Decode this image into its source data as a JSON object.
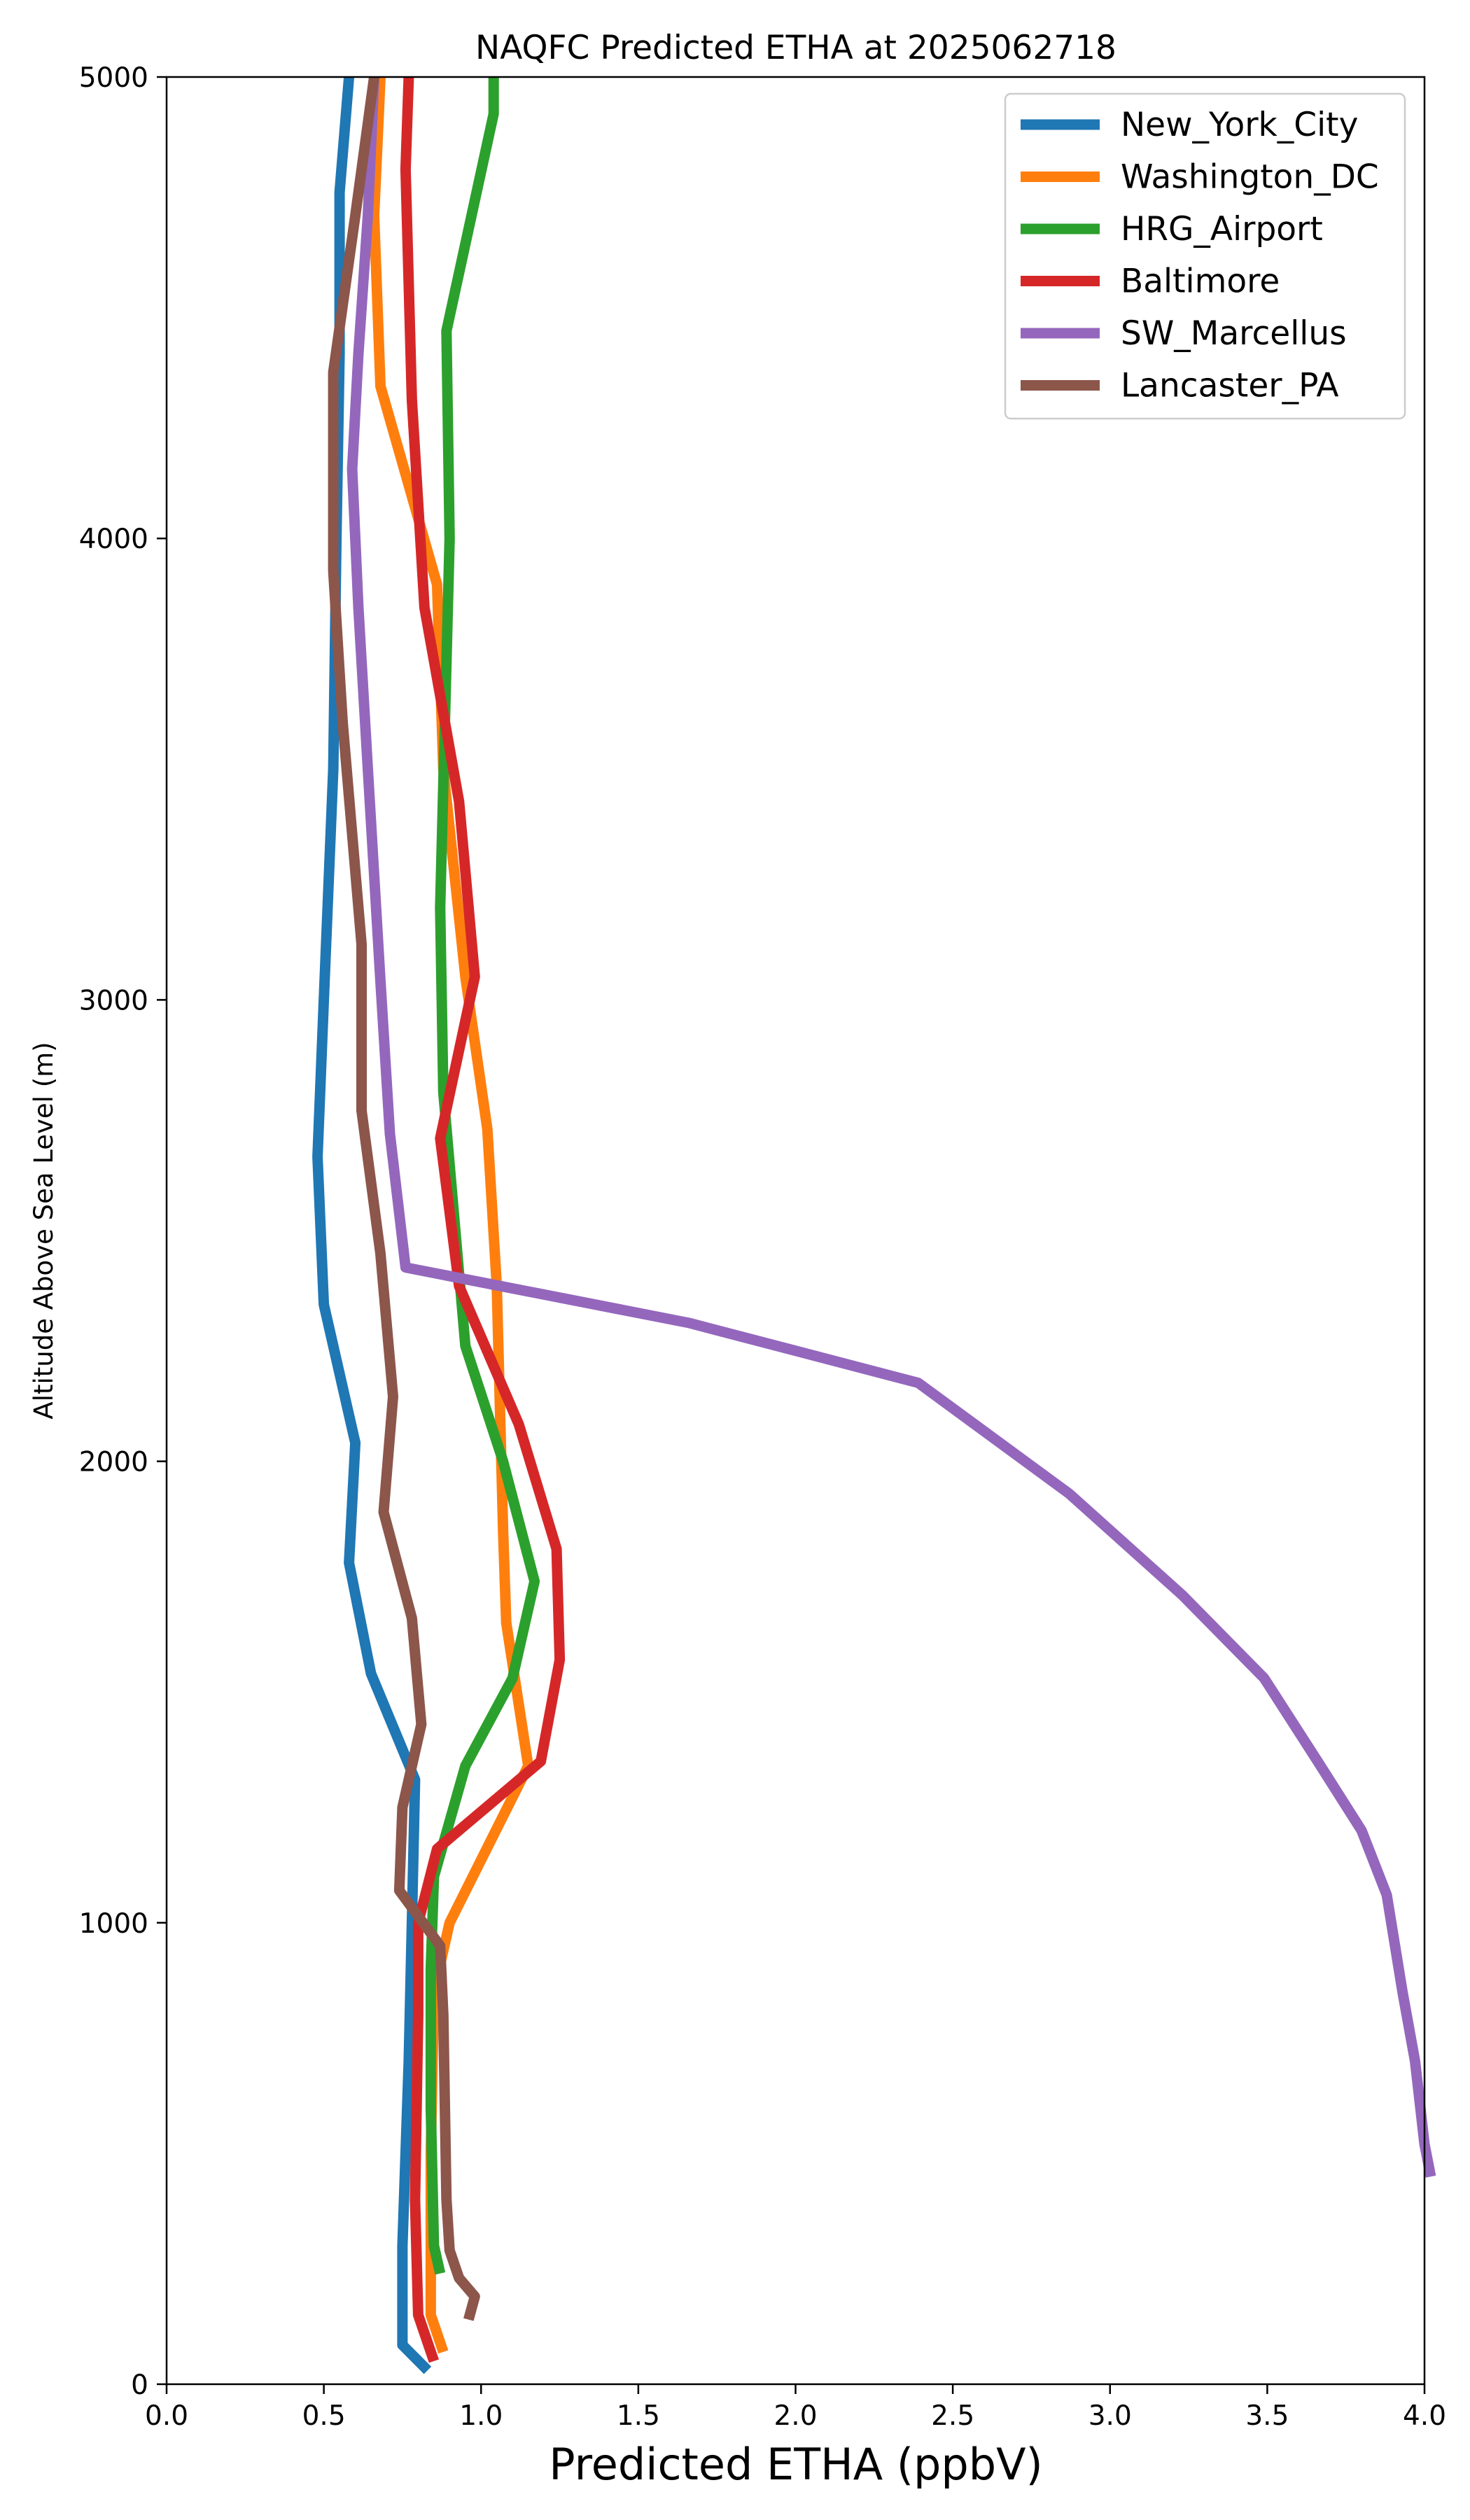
{
  "chart_data": {
    "type": "line",
    "title": "NAQFC Predicted ETHA at 2025062718",
    "xlabel": "Predicted ETHA (ppbV)",
    "ylabel": "Altitude Above Sea Level (m)",
    "xlim": [
      0,
      4.0
    ],
    "ylim": [
      0,
      5000
    ],
    "xticks": [
      "0.0",
      "0.5",
      "1.0",
      "1.5",
      "2.0",
      "2.5",
      "3.0",
      "3.5",
      "4.0"
    ],
    "yticks": [
      "0",
      "1000",
      "2000",
      "3000",
      "4000",
      "5000"
    ],
    "grid": false,
    "legend_position": "top-right",
    "series": [
      {
        "name": "New_York_City",
        "color": "#1f77b4",
        "points": [
          [
            0.83,
            30
          ],
          [
            0.75,
            85
          ],
          [
            0.75,
            300
          ],
          [
            0.77,
            700
          ],
          [
            0.78,
            1000
          ],
          [
            0.79,
            1310
          ],
          [
            0.65,
            1540
          ],
          [
            0.58,
            1780
          ],
          [
            0.6,
            2040
          ],
          [
            0.5,
            2340
          ],
          [
            0.48,
            2660
          ],
          [
            0.5,
            3000
          ],
          [
            0.53,
            3500
          ],
          [
            0.54,
            4000
          ],
          [
            0.55,
            4400
          ],
          [
            0.55,
            4750
          ],
          [
            0.58,
            5000
          ]
        ]
      },
      {
        "name": "Washington_DC",
        "color": "#ff7f0e",
        "points": [
          [
            0.88,
            70
          ],
          [
            0.84,
            150
          ],
          [
            0.84,
            500
          ],
          [
            0.85,
            850
          ],
          [
            0.9,
            1000
          ],
          [
            1.15,
            1340
          ],
          [
            1.08,
            1650
          ],
          [
            1.07,
            1850
          ],
          [
            1.05,
            2380
          ],
          [
            1.02,
            2720
          ],
          [
            0.95,
            3050
          ],
          [
            0.88,
            3500
          ],
          [
            0.86,
            3900
          ],
          [
            0.68,
            4330
          ],
          [
            0.66,
            4700
          ],
          [
            0.68,
            5000
          ]
        ]
      },
      {
        "name": "HRG_Airport",
        "color": "#2ca02c",
        "points": [
          [
            0.87,
            240
          ],
          [
            0.85,
            300
          ],
          [
            0.84,
            600
          ],
          [
            0.84,
            900
          ],
          [
            0.85,
            1100
          ],
          [
            0.95,
            1340
          ],
          [
            1.1,
            1530
          ],
          [
            1.17,
            1740
          ],
          [
            1.07,
            2000
          ],
          [
            0.95,
            2250
          ],
          [
            0.88,
            2800
          ],
          [
            0.87,
            3200
          ],
          [
            0.9,
            4000
          ],
          [
            0.89,
            4450
          ],
          [
            1.04,
            4920
          ],
          [
            1.04,
            5000
          ]
        ]
      },
      {
        "name": "Baltimore",
        "color": "#d62728",
        "points": [
          [
            0.85,
            50
          ],
          [
            0.8,
            150
          ],
          [
            0.79,
            400
          ],
          [
            0.8,
            800
          ],
          [
            0.8,
            1000
          ],
          [
            0.86,
            1160
          ],
          [
            1.19,
            1350
          ],
          [
            1.25,
            1570
          ],
          [
            1.24,
            1810
          ],
          [
            1.12,
            2080
          ],
          [
            0.93,
            2380
          ],
          [
            0.87,
            2700
          ],
          [
            0.98,
            3050
          ],
          [
            0.93,
            3430
          ],
          [
            0.82,
            3850
          ],
          [
            0.78,
            4300
          ],
          [
            0.76,
            4800
          ],
          [
            0.77,
            5000
          ]
        ]
      },
      {
        "name": "SW_Marcellus",
        "color": "#9467bd",
        "points": [
          [
            4.02,
            450
          ],
          [
            4.0,
            520
          ],
          [
            3.97,
            700
          ],
          [
            3.93,
            850
          ],
          [
            3.88,
            1060
          ],
          [
            3.8,
            1200
          ],
          [
            3.66,
            1350
          ],
          [
            3.49,
            1530
          ],
          [
            3.23,
            1710
          ],
          [
            2.87,
            1930
          ],
          [
            2.39,
            2170
          ],
          [
            1.66,
            2300
          ],
          [
            0.76,
            2420
          ],
          [
            0.71,
            2710
          ],
          [
            0.68,
            3040
          ],
          [
            0.64,
            3500
          ],
          [
            0.61,
            3850
          ],
          [
            0.59,
            4150
          ],
          [
            0.61,
            4400
          ],
          [
            0.64,
            4700
          ],
          [
            0.66,
            5000
          ]
        ]
      },
      {
        "name": "Lancaster_PA",
        "color": "#8c564b",
        "points": [
          [
            0.96,
            140
          ],
          [
            0.98,
            190
          ],
          [
            0.93,
            230
          ],
          [
            0.9,
            290
          ],
          [
            0.89,
            400
          ],
          [
            0.88,
            800
          ],
          [
            0.87,
            950
          ],
          [
            0.74,
            1070
          ],
          [
            0.75,
            1250
          ],
          [
            0.81,
            1430
          ],
          [
            0.78,
            1660
          ],
          [
            0.69,
            1890
          ],
          [
            0.72,
            2140
          ],
          [
            0.68,
            2450
          ],
          [
            0.62,
            2760
          ],
          [
            0.62,
            3120
          ],
          [
            0.56,
            3600
          ],
          [
            0.53,
            3930
          ],
          [
            0.53,
            4360
          ],
          [
            0.6,
            4700
          ],
          [
            0.66,
            5000
          ]
        ]
      }
    ]
  }
}
